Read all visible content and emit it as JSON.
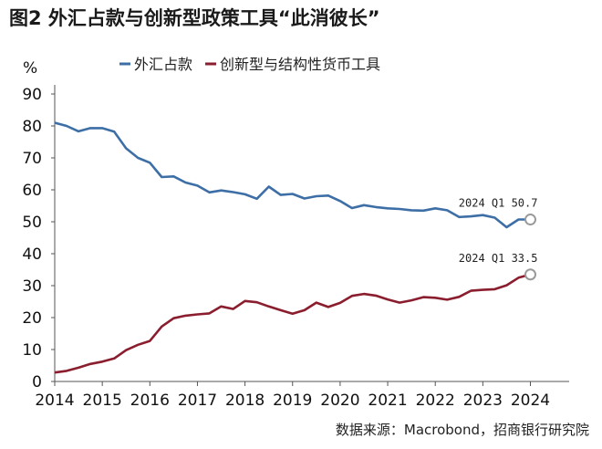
{
  "figure_title": "图2  外汇占款与创新型政策工具“此消彼长”",
  "source_note": "数据来源：Macrobond，招商银行研究院",
  "colors": {
    "fx": "#3d6fa6",
    "innov": "#8b1e2e",
    "axis": "#555555",
    "marker": "#9a9a9a"
  },
  "chart_data": {
    "type": "line",
    "title": "图2  外汇占款与创新型政策工具“此消彼长”",
    "ylabel": "%",
    "xlabel": "",
    "ylim": [
      0,
      90
    ],
    "xlim": [
      2014,
      2024.7
    ],
    "yticks": [
      0,
      10,
      20,
      30,
      40,
      50,
      60,
      70,
      80,
      90
    ],
    "xticks": [
      "2014",
      "2015",
      "2016",
      "2017",
      "2018",
      "2019",
      "2020",
      "2021",
      "2022",
      "2023",
      "2024"
    ],
    "grid": false,
    "legend_position": "top",
    "series": [
      {
        "name": "外汇占款",
        "color": "#3d6fa6",
        "x": [
          2014.0,
          2014.25,
          2014.5,
          2014.75,
          2015.0,
          2015.25,
          2015.5,
          2015.75,
          2016.0,
          2016.25,
          2016.5,
          2016.75,
          2017.0,
          2017.25,
          2017.5,
          2017.75,
          2018.0,
          2018.25,
          2018.5,
          2018.75,
          2019.0,
          2019.25,
          2019.5,
          2019.75,
          2020.0,
          2020.25,
          2020.5,
          2020.75,
          2021.0,
          2021.25,
          2021.5,
          2021.75,
          2022.0,
          2022.25,
          2022.5,
          2022.75,
          2023.0,
          2023.25,
          2023.5,
          2023.75,
          2024.0
        ],
        "y": [
          81,
          80,
          78.3,
          79.3,
          79.3,
          78.2,
          73,
          70,
          68.5,
          64,
          64.2,
          62.3,
          61.3,
          59.2,
          59.8,
          59.3,
          58.6,
          57.2,
          61,
          58.4,
          58.7,
          57.3,
          58,
          58.2,
          56.5,
          54.3,
          55.2,
          54.6,
          54.2,
          54,
          53.6,
          53.5,
          54.2,
          53.6,
          51.5,
          51.7,
          52.1,
          51.3,
          48.3,
          50.7,
          50.7
        ]
      },
      {
        "name": "创新型与结构性货币工具",
        "color": "#8b1e2e",
        "x": [
          2014.0,
          2014.25,
          2014.5,
          2014.75,
          2015.0,
          2015.25,
          2015.5,
          2015.75,
          2016.0,
          2016.25,
          2016.5,
          2016.75,
          2017.0,
          2017.25,
          2017.5,
          2017.75,
          2018.0,
          2018.25,
          2018.5,
          2018.75,
          2019.0,
          2019.25,
          2019.5,
          2019.75,
          2020.0,
          2020.25,
          2020.5,
          2020.75,
          2021.0,
          2021.25,
          2021.5,
          2021.75,
          2022.0,
          2022.25,
          2022.5,
          2022.75,
          2023.0,
          2023.25,
          2023.5,
          2023.75,
          2024.0
        ],
        "y": [
          2.8,
          3.3,
          4.3,
          5.5,
          6.2,
          7.2,
          9.8,
          11.5,
          12.7,
          17.2,
          19.8,
          20.6,
          21,
          21.3,
          23.5,
          22.7,
          25.2,
          24.8,
          23.5,
          22.3,
          21.2,
          22.3,
          24.7,
          23.3,
          24.6,
          26.8,
          27.4,
          26.9,
          25.7,
          24.7,
          25.4,
          26.4,
          26.2,
          25.6,
          26.5,
          28.4,
          28.7,
          28.9,
          30.1,
          32.5,
          33.5
        ]
      }
    ],
    "annotations": [
      {
        "text": "2024 Q1  50.7",
        "series": "外汇占款",
        "x": 2024.0,
        "y": 50.7
      },
      {
        "text": "2024 Q1  33.5",
        "series": "创新型与结构性货币工具",
        "x": 2024.0,
        "y": 33.5
      }
    ]
  }
}
